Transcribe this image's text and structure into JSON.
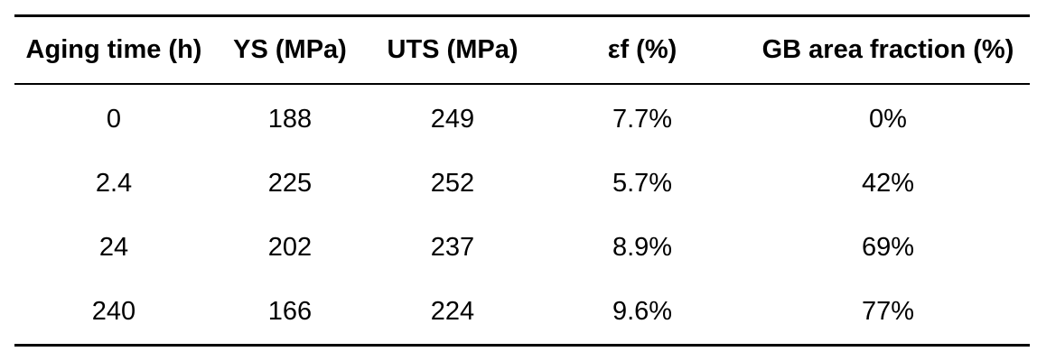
{
  "table": {
    "headers": [
      "Aging time (h)",
      "YS (MPa)",
      "UTS (MPa)",
      "εf (%)",
      "GB area fraction (%)"
    ],
    "rows": [
      [
        "0",
        "188",
        "249",
        "7.7%",
        "0%"
      ],
      [
        "2.4",
        "225",
        "252",
        "5.7%",
        "42%"
      ],
      [
        "24",
        "202",
        "237",
        "8.9%",
        "69%"
      ],
      [
        "240",
        "166",
        "224",
        "9.6%",
        "77%"
      ]
    ]
  }
}
